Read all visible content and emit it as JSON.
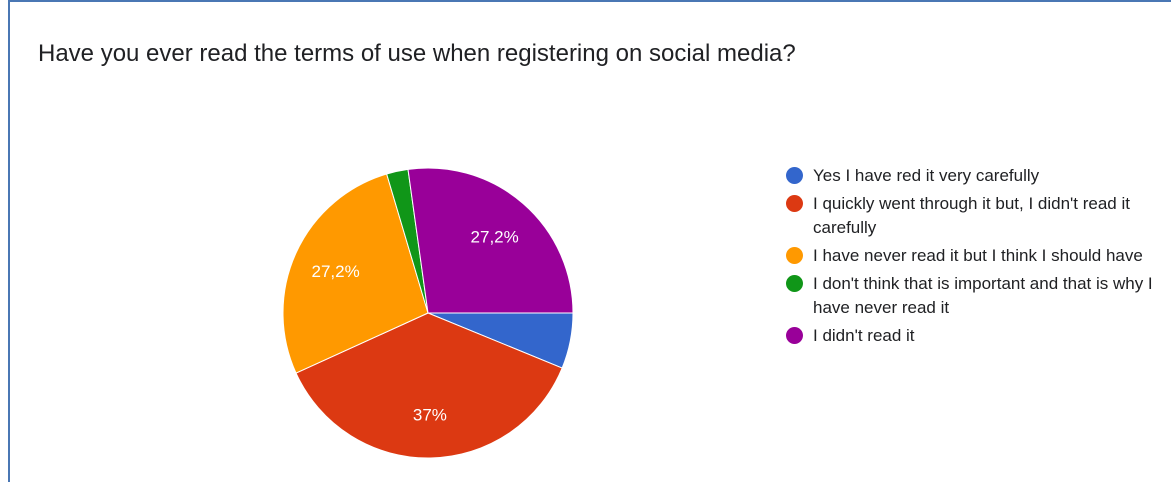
{
  "chart_data": {
    "type": "pie",
    "title": "Have you ever read the terms of use when registering on social media?",
    "slices": [
      {
        "label": "Yes I have red it very carefully",
        "value": 6.2,
        "display_label": "",
        "color": "#3366cc"
      },
      {
        "label": "I quickly went through it but, I didn't read it carefully",
        "value": 37.0,
        "display_label": "37%",
        "color": "#dc3912"
      },
      {
        "label": "I have never read it but I think I should have",
        "value": 27.2,
        "display_label": "27,2%",
        "color": "#ff9900"
      },
      {
        "label": "I don't think that is important and that is why I have never read it",
        "value": 2.4,
        "display_label": "",
        "color": "#109618"
      },
      {
        "label": "I didn't read it",
        "value": 27.2,
        "display_label": "27,2%",
        "color": "#990099"
      }
    ],
    "legend_position": "right"
  },
  "colors": {
    "card_border": "#4a77b4",
    "slice_label": "#ffffff"
  }
}
